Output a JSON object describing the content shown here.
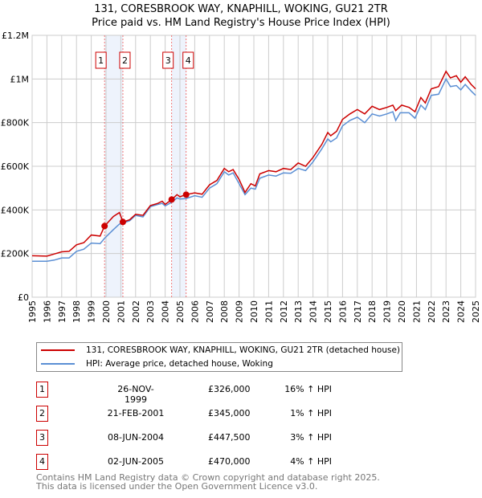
{
  "chart_data": {
    "type": "line",
    "title": "131, CORESBROOK WAY, KNAPHILL, WOKING, GU21 2TR",
    "subtitle": "Price paid vs. HM Land Registry's House Price Index (HPI)",
    "ylim": [
      0,
      1200000
    ],
    "xlim": [
      1995,
      2025
    ],
    "yticks": [
      {
        "v": 0,
        "label": "£0"
      },
      {
        "v": 200000,
        "label": "£200K"
      },
      {
        "v": 400000,
        "label": "£400K"
      },
      {
        "v": 600000,
        "label": "£600K"
      },
      {
        "v": 800000,
        "label": "£800K"
      },
      {
        "v": 1000000,
        "label": "£1M"
      },
      {
        "v": 1200000,
        "label": "£1.2M"
      }
    ],
    "xticks": [
      "1995",
      "1996",
      "1997",
      "1998",
      "1999",
      "2000",
      "2001",
      "2002",
      "2003",
      "2004",
      "2005",
      "2006",
      "2007",
      "2008",
      "2009",
      "2010",
      "2011",
      "2012",
      "2013",
      "2014",
      "2015",
      "2016",
      "2017",
      "2018",
      "2019",
      "2020",
      "2021",
      "2022",
      "2023",
      "2024",
      "2025"
    ],
    "grid": true,
    "series": [
      {
        "name": "131, CORESBROOK WAY, KNAPHILL, WOKING, GU21 2TR (detached house)",
        "color": "#cc0000",
        "points": [
          [
            1995,
            190000
          ],
          [
            1996,
            188000
          ],
          [
            1996.5,
            198000
          ],
          [
            1997,
            208000
          ],
          [
            1997.5,
            210000
          ],
          [
            1998,
            240000
          ],
          [
            1998.5,
            250000
          ],
          [
            1999,
            285000
          ],
          [
            1999.6,
            280000
          ],
          [
            1999.9,
            326000
          ],
          [
            2000.5,
            370000
          ],
          [
            2000.9,
            388000
          ],
          [
            2001.15,
            345000
          ],
          [
            2001.6,
            355000
          ],
          [
            2002,
            380000
          ],
          [
            2002.5,
            375000
          ],
          [
            2003,
            420000
          ],
          [
            2003.5,
            430000
          ],
          [
            2003.8,
            440000
          ],
          [
            2004,
            425000
          ],
          [
            2004.45,
            447500
          ],
          [
            2004.8,
            470000
          ],
          [
            2005,
            460000
          ],
          [
            2005.4,
            470000
          ],
          [
            2006,
            478000
          ],
          [
            2006.5,
            472000
          ],
          [
            2007,
            515000
          ],
          [
            2007.5,
            535000
          ],
          [
            2008,
            590000
          ],
          [
            2008.3,
            575000
          ],
          [
            2008.6,
            585000
          ],
          [
            2009,
            540000
          ],
          [
            2009.4,
            480000
          ],
          [
            2009.8,
            520000
          ],
          [
            2010.1,
            510000
          ],
          [
            2010.4,
            565000
          ],
          [
            2011,
            580000
          ],
          [
            2011.5,
            575000
          ],
          [
            2012,
            590000
          ],
          [
            2012.5,
            585000
          ],
          [
            2013,
            615000
          ],
          [
            2013.5,
            600000
          ],
          [
            2014,
            640000
          ],
          [
            2014.6,
            700000
          ],
          [
            2015,
            755000
          ],
          [
            2015.2,
            740000
          ],
          [
            2015.6,
            760000
          ],
          [
            2016,
            815000
          ],
          [
            2016.5,
            840000
          ],
          [
            2017,
            860000
          ],
          [
            2017.5,
            840000
          ],
          [
            2018,
            875000
          ],
          [
            2018.5,
            860000
          ],
          [
            2019,
            870000
          ],
          [
            2019.4,
            880000
          ],
          [
            2019.6,
            855000
          ],
          [
            2020,
            880000
          ],
          [
            2020.5,
            870000
          ],
          [
            2020.9,
            850000
          ],
          [
            2021.3,
            915000
          ],
          [
            2021.6,
            890000
          ],
          [
            2022,
            955000
          ],
          [
            2022.5,
            965000
          ],
          [
            2023,
            1035000
          ],
          [
            2023.3,
            1005000
          ],
          [
            2023.7,
            1015000
          ],
          [
            2024,
            985000
          ],
          [
            2024.3,
            1010000
          ],
          [
            2024.7,
            975000
          ],
          [
            2025,
            955000
          ]
        ]
      },
      {
        "name": "HPI: Average price, detached house, Woking",
        "color": "#5b8fd4",
        "points": [
          [
            1995,
            165000
          ],
          [
            1996,
            165000
          ],
          [
            1996.5,
            170000
          ],
          [
            1997,
            180000
          ],
          [
            1997.5,
            180000
          ],
          [
            1998,
            210000
          ],
          [
            1998.5,
            220000
          ],
          [
            1999,
            248000
          ],
          [
            1999.6,
            245000
          ],
          [
            1999.9,
            270000
          ],
          [
            2000.5,
            310000
          ],
          [
            2000.9,
            335000
          ],
          [
            2001.15,
            340000
          ],
          [
            2001.6,
            350000
          ],
          [
            2002,
            375000
          ],
          [
            2002.5,
            368000
          ],
          [
            2003,
            415000
          ],
          [
            2003.5,
            425000
          ],
          [
            2003.8,
            430000
          ],
          [
            2004,
            418000
          ],
          [
            2004.45,
            435000
          ],
          [
            2004.8,
            455000
          ],
          [
            2005,
            450000
          ],
          [
            2005.4,
            452000
          ],
          [
            2006,
            465000
          ],
          [
            2006.5,
            458000
          ],
          [
            2007,
            500000
          ],
          [
            2007.5,
            520000
          ],
          [
            2008,
            575000
          ],
          [
            2008.3,
            560000
          ],
          [
            2008.6,
            570000
          ],
          [
            2009,
            520000
          ],
          [
            2009.4,
            470000
          ],
          [
            2009.8,
            500000
          ],
          [
            2010.1,
            495000
          ],
          [
            2010.4,
            545000
          ],
          [
            2011,
            560000
          ],
          [
            2011.5,
            555000
          ],
          [
            2012,
            570000
          ],
          [
            2012.5,
            568000
          ],
          [
            2013,
            590000
          ],
          [
            2013.5,
            580000
          ],
          [
            2014,
            620000
          ],
          [
            2014.6,
            680000
          ],
          [
            2015,
            725000
          ],
          [
            2015.2,
            712000
          ],
          [
            2015.6,
            730000
          ],
          [
            2016,
            785000
          ],
          [
            2016.5,
            810000
          ],
          [
            2017,
            825000
          ],
          [
            2017.5,
            800000
          ],
          [
            2018,
            840000
          ],
          [
            2018.5,
            830000
          ],
          [
            2019,
            840000
          ],
          [
            2019.4,
            850000
          ],
          [
            2019.6,
            810000
          ],
          [
            2019.9,
            845000
          ],
          [
            2020.5,
            845000
          ],
          [
            2020.9,
            820000
          ],
          [
            2021.3,
            880000
          ],
          [
            2021.6,
            860000
          ],
          [
            2022,
            925000
          ],
          [
            2022.5,
            930000
          ],
          [
            2023,
            1000000
          ],
          [
            2023.3,
            965000
          ],
          [
            2023.7,
            970000
          ],
          [
            2024,
            950000
          ],
          [
            2024.3,
            975000
          ],
          [
            2024.7,
            945000
          ],
          [
            2025,
            925000
          ]
        ]
      }
    ],
    "sales": [
      {
        "id": "1",
        "x": 1999.9,
        "value": 326000,
        "date": "26-NOV-1999",
        "price": "£326,000",
        "hpi": "16% ↑ HPI"
      },
      {
        "id": "2",
        "x": 2001.14,
        "value": 345000,
        "date": "21-FEB-2001",
        "price": "£345,000",
        "hpi": "1% ↑ HPI"
      },
      {
        "id": "3",
        "x": 2004.44,
        "value": 447500,
        "date": "08-JUN-2004",
        "price": "£447,500",
        "hpi": "3% ↑ HPI"
      },
      {
        "id": "4",
        "x": 2005.42,
        "value": 470000,
        "date": "02-JUN-2005",
        "price": "£470,000",
        "hpi": "4% ↑ HPI"
      }
    ],
    "shaded_ranges": [
      [
        1999.9,
        2001.14
      ],
      [
        2004.44,
        2005.42
      ]
    ]
  },
  "footer": {
    "line1": "Contains HM Land Registry data © Crown copyright and database right 2025.",
    "line2": "This data is licensed under the Open Government Licence v3.0."
  }
}
